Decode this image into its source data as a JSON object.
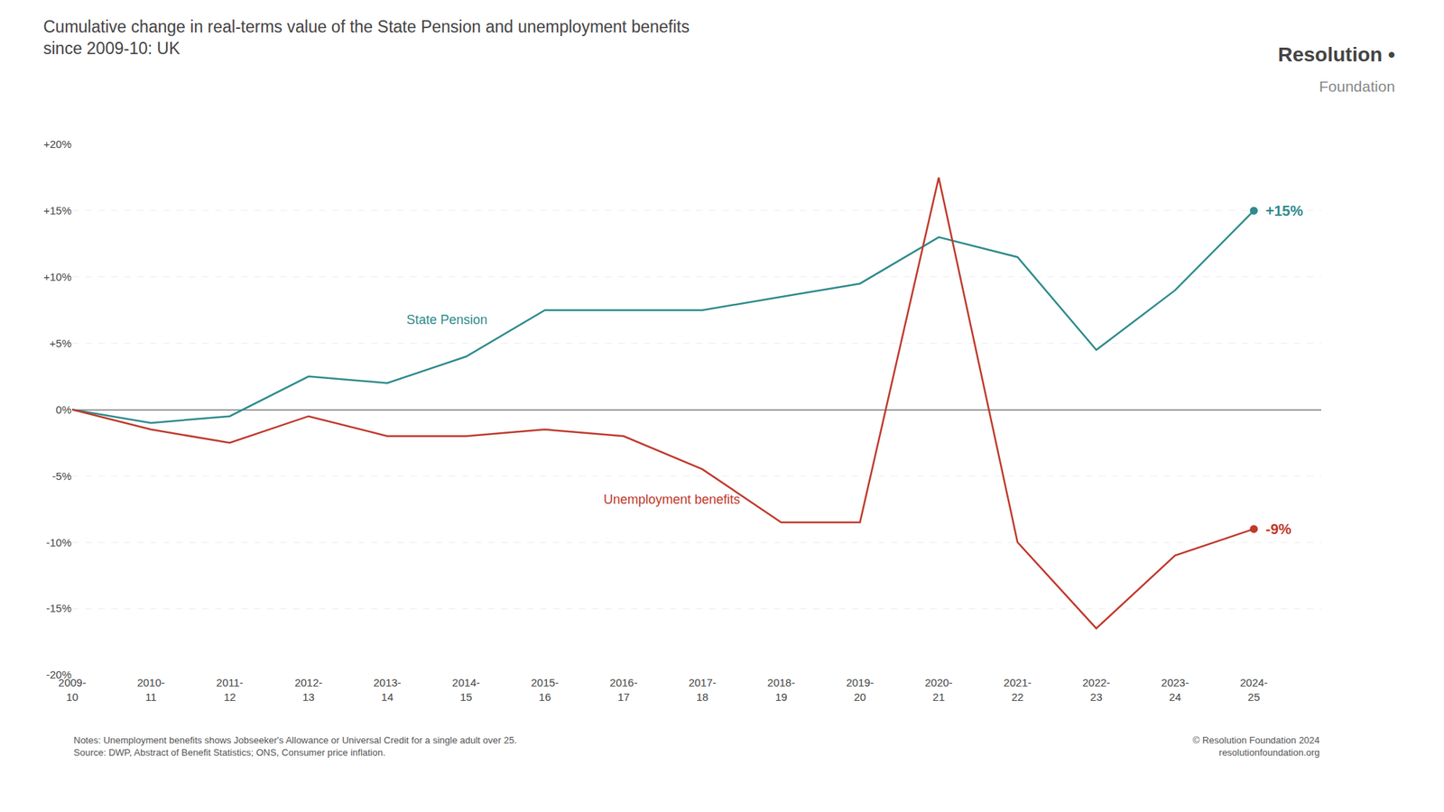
{
  "chart_data": {
    "type": "line",
    "title": "Cumulative change in real-terms value of the State Pension and unemployment benefits\nsince 2009-10: UK",
    "categories": [
      "2009-\n10",
      "2010-\n11",
      "2011-\n12",
      "2012-\n13",
      "2013-\n14",
      "2014-\n15",
      "2015-\n16",
      "2016-\n17",
      "2017-\n18",
      "2018-\n19",
      "2019-\n20",
      "2020-\n21",
      "2021-\n22",
      "2022-\n23",
      "2023-\n24",
      "2024-\n25"
    ],
    "series": [
      {
        "name": "State Pension",
        "color": "#2e8b8c",
        "values": [
          0.0,
          -1.0,
          -0.5,
          2.5,
          2.0,
          4.0,
          7.5,
          7.5,
          7.5,
          8.5,
          9.5,
          13.0,
          11.5,
          4.5,
          9.0,
          15.0
        ]
      },
      {
        "name": "Unemployment benefits",
        "color": "#c0392b",
        "values": [
          0.0,
          -1.5,
          -2.5,
          -0.5,
          -2.0,
          -2.0,
          -1.5,
          -2.0,
          -4.5,
          -8.5,
          -8.5,
          17.5,
          -10.0,
          -16.5,
          -11.0,
          -9.0
        ]
      }
    ],
    "annotations": [
      {
        "text": "+15%",
        "series": "State Pension"
      },
      {
        "text": "-9%",
        "series": "Unemployment benefits"
      }
    ],
    "ylim": [
      -20,
      20
    ],
    "yticks": [
      {
        "value": -20,
        "label": "-20%"
      },
      {
        "value": -15,
        "label": "-15%"
      },
      {
        "value": -10,
        "label": "-10%"
      },
      {
        "value": -5,
        "label": "-5%"
      },
      {
        "value": 0,
        "label": "0%"
      },
      {
        "value": 5,
        "label": "+5%"
      },
      {
        "value": 10,
        "label": "+10%"
      },
      {
        "value": 15,
        "label": "+15%"
      },
      {
        "value": 20,
        "label": "+20%"
      }
    ],
    "grid": true,
    "notes": "Notes: Unemployment benefits shows Jobseeker's Allowance or Universal Credit for a single adult over 25.\nSource: DWP, Abstract of Benefit Statistics; ONS, Consumer price inflation.",
    "copyright": "© Resolution Foundation 2024\nresolutionfoundation.org",
    "logo": [
      "Resolution",
      "•",
      "Foundation"
    ]
  }
}
